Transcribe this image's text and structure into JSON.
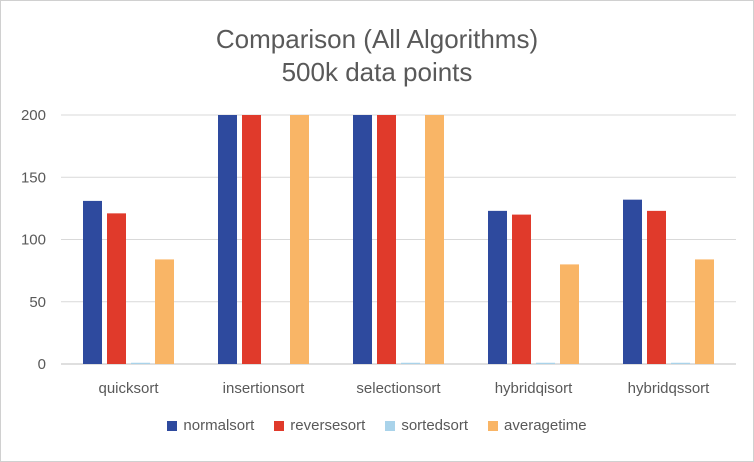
{
  "chart_data": {
    "type": "bar",
    "title": "Comparison (All Algorithms)",
    "subtitle": "500k data points",
    "xlabel": "",
    "ylabel": "",
    "ylim": [
      0,
      200
    ],
    "yticks": [
      0,
      50,
      100,
      150,
      200
    ],
    "grid": true,
    "legend_position": "bottom",
    "categories": [
      "quicksort",
      "insertionsort",
      "selectionsort",
      "hybridqisort",
      "hybridqssort"
    ],
    "series": [
      {
        "name": "normalsort",
        "color": "#2e4a9e",
        "values": [
          131,
          200,
          200,
          123,
          132
        ]
      },
      {
        "name": "reversesort",
        "color": "#e03a2b",
        "values": [
          121,
          200,
          200,
          120,
          123
        ]
      },
      {
        "name": "sortedsort",
        "color": "#a9d3ea",
        "values": [
          1,
          0,
          1,
          1,
          1
        ]
      },
      {
        "name": "averagetime",
        "color": "#f9b566",
        "values": [
          84,
          200,
          200,
          80,
          84
        ]
      }
    ]
  }
}
